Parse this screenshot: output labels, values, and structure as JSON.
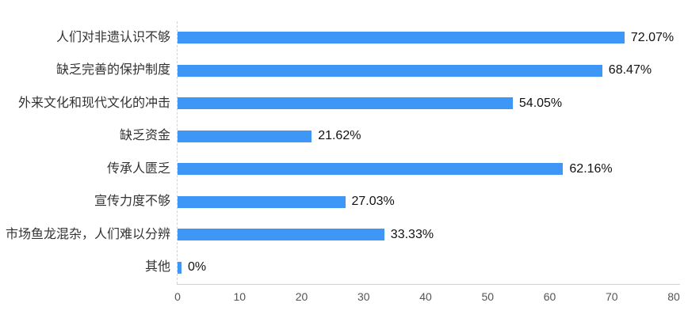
{
  "chart_data": {
    "type": "bar",
    "orientation": "horizontal",
    "title": "",
    "xlabel": "",
    "ylabel": "",
    "categories": [
      "人们对非遗认识不够",
      "缺乏完善的保护制度",
      "外来文化和现代文化的冲击",
      "缺乏资金",
      "传承人匮乏",
      "宣传力度不够",
      "市场鱼龙混杂，人们难以分辨",
      "其他"
    ],
    "values": [
      72.07,
      68.47,
      54.05,
      21.62,
      62.16,
      27.03,
      33.33,
      0
    ],
    "value_labels": [
      "72.07%",
      "68.47%",
      "54.05%",
      "21.62%",
      "27.03%",
      "33.33%",
      "0%"
    ],
    "value_labels_full": [
      "72.07%",
      "68.47%",
      "54.05%",
      "21.62%",
      "62.16%",
      "27.03%",
      "33.33%",
      "0%"
    ],
    "x_ticks": [
      "0",
      "10",
      "20",
      "30",
      "40",
      "50",
      "60",
      "70",
      "80"
    ],
    "xlim": [
      0,
      80
    ],
    "grid": false,
    "legend": false,
    "bar_color": "#3e96f7",
    "y_axis_line_color": "#c5d3ee",
    "x_axis_line_color": "#c9d2e0",
    "category_text_color": "#333333",
    "value_text_color": "#111111",
    "tick_text_color": "#545454"
  }
}
